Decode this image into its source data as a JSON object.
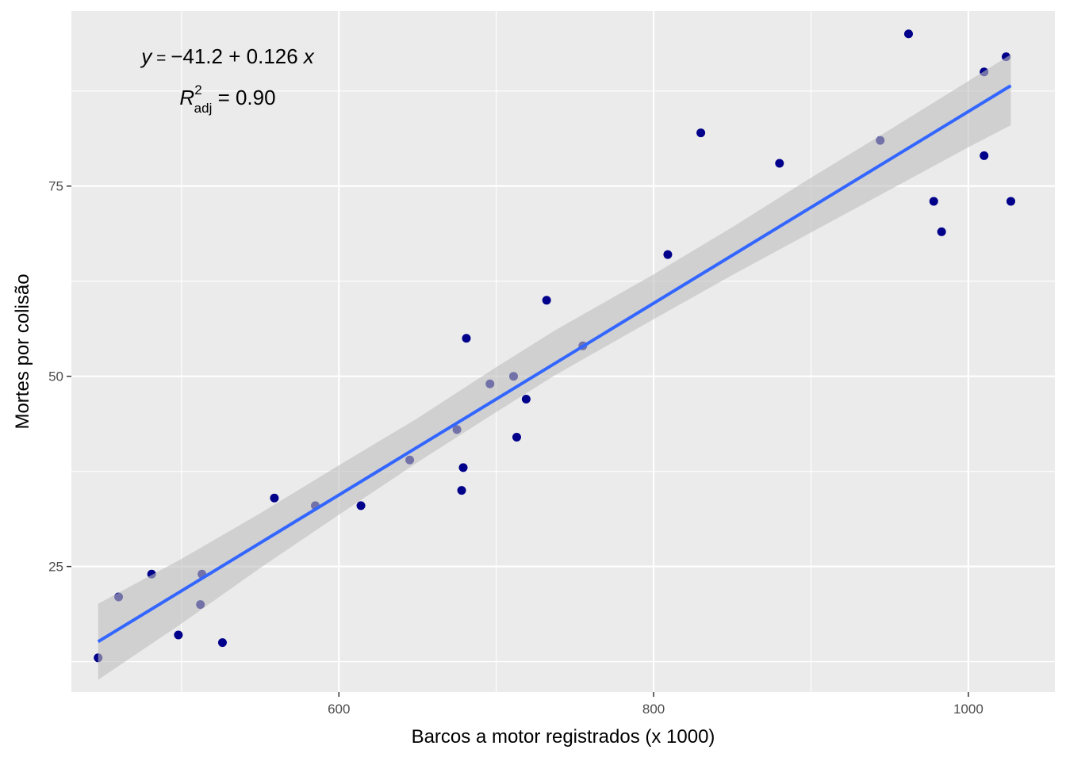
{
  "chart_data": {
    "type": "scatter",
    "title": "",
    "xlabel": "Barcos a motor registrados (x 1000)",
    "ylabel": "Mortes por colisão",
    "xlim": [
      430,
      1055
    ],
    "ylim": [
      8.5,
      98
    ],
    "x_major_ticks": [
      600,
      800,
      1000
    ],
    "x_minor_ticks": [
      500,
      700,
      900
    ],
    "y_major_ticks": [
      25,
      50,
      75
    ],
    "y_minor_ticks": [
      12.5,
      37.5,
      62.5,
      87.5
    ],
    "x_tick_labels": [
      "600",
      "800",
      "1000"
    ],
    "y_tick_labels": [
      "25",
      "50",
      "75"
    ],
    "grid": true,
    "legend": "none",
    "colors": {
      "panel": "#ebebeb",
      "grid": "#ffffff",
      "points": "#00008b",
      "fit_line": "#3366ff",
      "confidence_band": "#bebebe"
    },
    "annotation": {
      "equation": {
        "y": "y",
        "eq": " = ",
        "minus": "−",
        "intercept": "41.2",
        "plus": " + ",
        "slope": "0.126",
        "x": "x"
      },
      "r2": {
        "r": "R",
        "sup": "2",
        "sub": "adj",
        "value": " = 0.90"
      }
    },
    "series": [
      {
        "values_xy": [
          [
            447,
            13
          ],
          [
            460,
            21
          ],
          [
            481,
            24
          ],
          [
            498,
            16
          ],
          [
            512,
            20
          ],
          [
            513,
            24
          ],
          [
            526,
            15
          ],
          [
            559,
            34
          ],
          [
            585,
            33
          ],
          [
            614,
            33
          ],
          [
            645,
            39
          ],
          [
            675,
            43
          ],
          [
            678,
            35
          ],
          [
            679,
            38
          ],
          [
            681,
            55
          ],
          [
            696,
            49
          ],
          [
            711,
            50
          ],
          [
            713,
            42
          ],
          [
            719,
            47
          ],
          [
            732,
            60
          ],
          [
            755,
            54
          ],
          [
            809,
            66
          ],
          [
            830,
            82
          ],
          [
            880,
            78
          ],
          [
            944,
            81
          ],
          [
            962,
            95
          ],
          [
            978,
            73
          ],
          [
            983,
            69
          ],
          [
            1010,
            79
          ],
          [
            1010,
            90
          ],
          [
            1024,
            92
          ],
          [
            1027,
            73
          ]
        ]
      }
    ],
    "fit": {
      "intercept": -41.2,
      "slope": 0.126,
      "x_range": [
        447,
        1027
      ],
      "band": [
        [
          447,
          10.1,
          20.1
        ],
        [
          500,
          17.5,
          26.0
        ],
        [
          550,
          24.8,
          32.0
        ],
        [
          600,
          31.8,
          38.3
        ],
        [
          650,
          38.7,
          44.5
        ],
        [
          700,
          45.3,
          51.2
        ],
        [
          737,
          50.1,
          56.0
        ],
        [
          800,
          57.5,
          63.4
        ],
        [
          850,
          63.3,
          69.6
        ],
        [
          900,
          68.9,
          76.1
        ],
        [
          950,
          74.5,
          82.4
        ],
        [
          1000,
          80.1,
          88.8
        ],
        [
          1027,
          83.0,
          92.3
        ]
      ]
    }
  }
}
